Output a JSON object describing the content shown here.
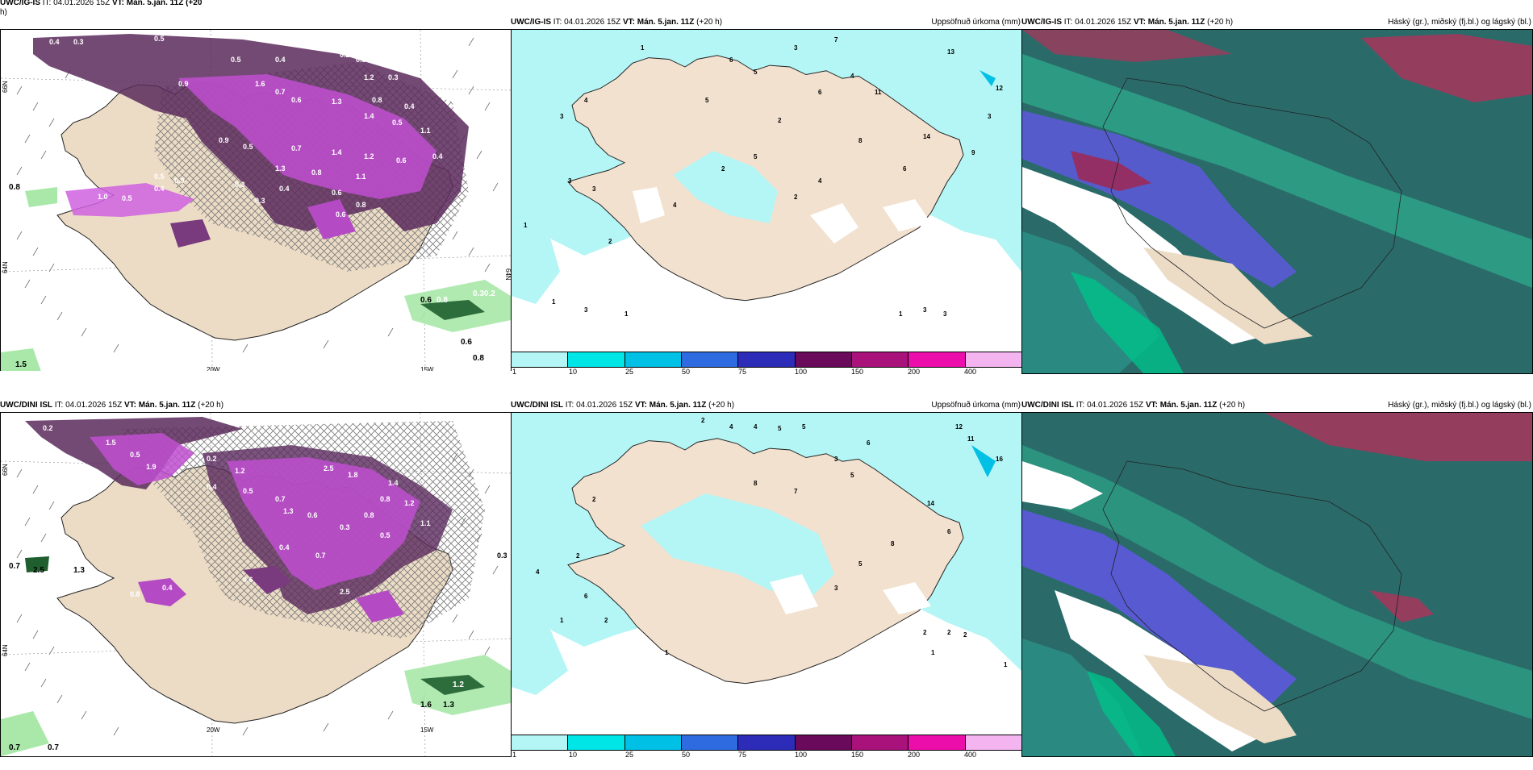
{
  "panels": {
    "p1": {
      "model": "UWC/IG-IS",
      "it_prefix": "IT: 04.01.2026 15Z",
      "vt": "VT: Mán. 5.jan. 11Z",
      "lead": "(+20",
      "lead_line2": "h)"
    },
    "p2": {
      "model": "UWC/IG-IS",
      "it_prefix": "IT: 04.01.2026 15Z",
      "vt": "VT: Mán. 5.jan. 11Z",
      "lead": "(+20 h)",
      "right_label": "Uppsöfnuð úrkoma (mm)"
    },
    "p3": {
      "model": "UWC/IG-IS",
      "it_prefix": "IT: 04.01.2026 15Z",
      "vt": "VT: Mán. 5.jan. 11Z",
      "lead": "(+20 h)",
      "right_label": "Háský (gr.), miðský (fj.bl.) og lágský (bl.)"
    },
    "p4": {
      "model": "UWC/DINI ISL",
      "it_prefix": "IT: 04.01.2026 15Z",
      "vt": "VT: Mán. 5.jan. 11Z",
      "lead": "(+20 h)"
    },
    "p5": {
      "model": "UWC/DINI ISL",
      "it_prefix": "IT: 04.01.2026 15Z",
      "vt": "VT: Mán. 5.jan. 11Z",
      "lead": "(+20 h)",
      "right_label": "Uppsöfnuð úrkoma (mm)"
    },
    "p6": {
      "model": "UWC/DINI ISL",
      "it_prefix": "IT: 04.01.2026 15Z",
      "vt": "VT: Mán. 5.jan. 11Z",
      "lead": "(+20 h)",
      "right_label": "Háský (gr.), miðský (fj.bl.) og lágský (bl.)"
    }
  },
  "axes": {
    "lon_a": "20W",
    "lon_b": "15W",
    "lat_a": "66N",
    "lat_b": "64N",
    "lat_c": "64N"
  },
  "colorbar": {
    "ticks": [
      "1",
      "10",
      "25",
      "50",
      "75",
      "100",
      "150",
      "200",
      "400"
    ],
    "colors": [
      "#b4f5f5",
      "#00e6e6",
      "#00c0e6",
      "#2f6be0",
      "#2c2cb8",
      "#6a0a5a",
      "#a8127a",
      "#ec0eaa",
      "#f4b4f0"
    ]
  },
  "labels": {
    "p1": [
      "0.4",
      "0.3",
      "0.5",
      "0.2",
      "0.5",
      "0.4",
      "0.3",
      "0.9",
      "1.2",
      "0.3",
      "1.6",
      "0.7",
      "0.6",
      "1.3",
      "0.8",
      "0.4",
      "1.4",
      "0.5",
      "1.1",
      "0.9",
      "0.5",
      "0.7",
      "1.4",
      "1.2",
      "0.6",
      "0.4",
      "1.3",
      "0.8",
      "1.1",
      "0.5",
      "0.9",
      "0.3",
      "0.4",
      "0.6",
      "0.8",
      "0.4",
      "1.0",
      "0.5",
      "0.3",
      "0.6",
      "0.8",
      "0.6",
      "0.8",
      "0.30.2",
      "0.6",
      "0.8",
      "1.5"
    ],
    "p2": [
      "1",
      "3",
      "4",
      "6",
      "5",
      "3",
      "7",
      "13",
      "12",
      "5",
      "2",
      "4",
      "6",
      "11",
      "9",
      "3",
      "14",
      "3",
      "3",
      "4",
      "2",
      "5",
      "1",
      "2",
      "6",
      "8",
      "4",
      "2",
      "1",
      "3",
      "1",
      "1",
      "3",
      "3"
    ],
    "p4": [
      "0.2",
      "1.5",
      "0.5",
      "1.9",
      "0.2",
      "1.2",
      "2.5",
      "1.8",
      "1.4",
      "0.4",
      "0.5",
      "0.7",
      "0.8",
      "1.2",
      "1.3",
      "0.6",
      "0.8",
      "1.1",
      "0.3",
      "0.5",
      "0.4",
      "0.7",
      "0.8",
      "2.5",
      "0.6",
      "0.4",
      "0.7",
      "0.3",
      "1.3",
      "1.2",
      "1.6",
      "1.3",
      "0.7",
      "0.7"
    ],
    "p5": [
      "2",
      "4",
      "4",
      "5",
      "5",
      "12",
      "11",
      "16",
      "6",
      "3",
      "2",
      "8",
      "7",
      "5",
      "14",
      "6",
      "8",
      "5",
      "3",
      "2",
      "4",
      "1",
      "6",
      "2",
      "1",
      "2",
      "2",
      "2",
      "1",
      "1"
    ]
  }
}
